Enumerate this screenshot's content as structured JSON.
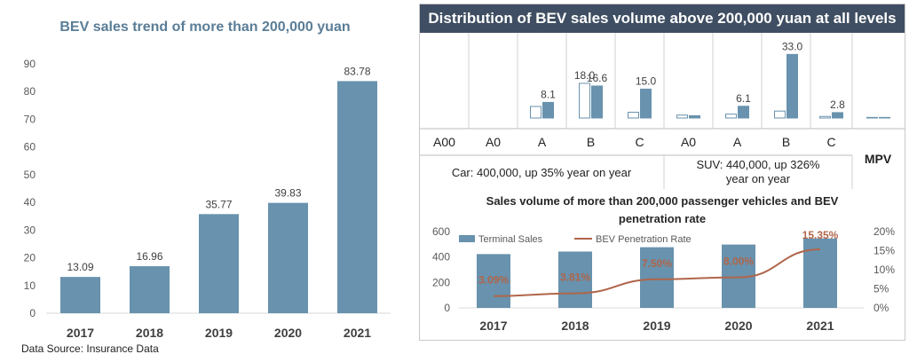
{
  "chart_data": [
    {
      "type": "bar",
      "title": "BEV sales trend of more than 200,000 yuan",
      "categories": [
        "2017",
        "2018",
        "2019",
        "2020",
        "2021"
      ],
      "values": [
        13.09,
        16.96,
        35.77,
        39.83,
        83.78
      ],
      "value_labels": [
        "13.09",
        "16.96",
        "35.77",
        "39.83",
        "83.78"
      ],
      "yticks": [
        "0",
        "10",
        "20",
        "30",
        "40",
        "50",
        "60",
        "70",
        "80",
        "90"
      ],
      "ylim": [
        0,
        90
      ],
      "grid": false,
      "color": "#6892ad"
    },
    {
      "type": "bar",
      "title": "Distribution of BEV sales volume above 200,000 yuan at all levels",
      "categories": [
        "A00",
        "A0",
        "A",
        "B",
        "C",
        "A0",
        "A",
        "B",
        "C",
        "MPV"
      ],
      "groups": [
        {
          "label": "Car: 400,000, up 35% year on year",
          "span": [
            0,
            4
          ]
        },
        {
          "label": "SUV: 440,000, up 326% year on year",
          "span": [
            5,
            8
          ]
        },
        {
          "label": "MPV",
          "span": [
            9,
            9
          ]
        }
      ],
      "series": [
        {
          "values": [
            0,
            0,
            6.0,
            18.0,
            3.0,
            1.5,
            2.0,
            3.6,
            0.8,
            0.3
          ],
          "labels": [
            "",
            "",
            "",
            "18.0",
            "",
            "",
            "",
            "",
            "",
            ""
          ],
          "fill": "#ffffff",
          "stroke": "#6892ad"
        },
        {
          "values": [
            0,
            0,
            8.1,
            16.6,
            15.0,
            1.2,
            6.1,
            33.0,
            2.8,
            0.3
          ],
          "labels": [
            "",
            "",
            "8.1",
            "16.6",
            "15.0",
            "",
            "6.1",
            "33.0",
            "2.8",
            ""
          ],
          "fill": "#6892ad",
          "stroke": "#6892ad"
        }
      ],
      "ylim": [
        0,
        35
      ],
      "title_bg": "#3f4e62"
    },
    {
      "type": "bar+line",
      "title_lines": [
        "Sales volume of more than 200,000 passenger vehicles and BEV",
        "penetration rate"
      ],
      "categories": [
        "2017",
        "2018",
        "2019",
        "2020",
        "2021"
      ],
      "series": [
        {
          "name": "Terminal Sales",
          "type": "bar",
          "axis": "left",
          "values": [
            423,
            443,
            477,
            498,
            546
          ],
          "color": "#6892ad"
        },
        {
          "name": "BEV Penetration Rate",
          "type": "line",
          "axis": "right",
          "values": [
            3.09,
            3.81,
            7.5,
            8.0,
            15.35
          ],
          "labels": [
            "3.09%",
            "3.81%",
            "7.50%",
            "8.00%",
            "15.35%"
          ],
          "color": "#b0654a"
        }
      ],
      "yticks_left": [
        "0",
        "200",
        "400",
        "600"
      ],
      "ylim_left": [
        0,
        600
      ],
      "yticks_right": [
        "0%",
        "5%",
        "10%",
        "15%",
        "20%"
      ],
      "ylim_right": [
        0,
        20
      ],
      "legend_placement": "top"
    }
  ],
  "source_note": "Data Source: Insurance Data"
}
